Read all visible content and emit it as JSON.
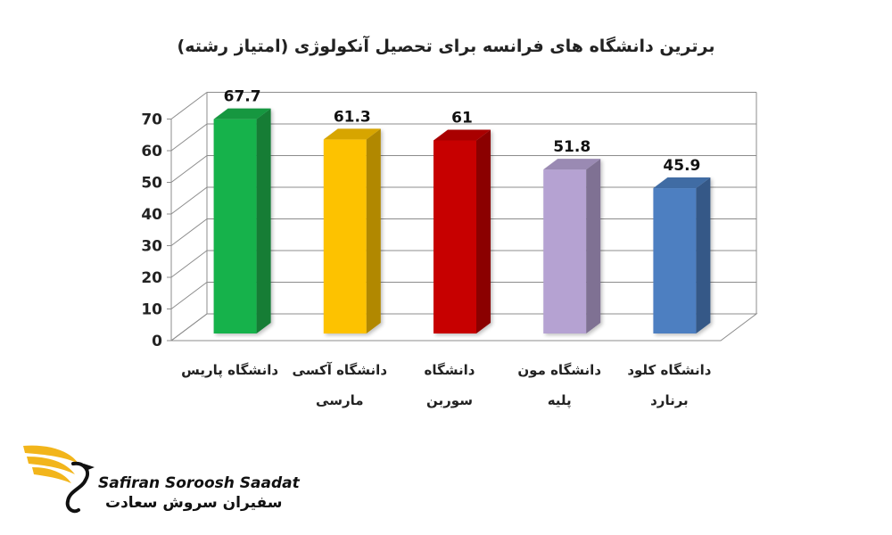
{
  "chart_data": {
    "type": "bar",
    "title": "برترین دانشگاه های فرانسه برای تحصیل آنکولوژی (امتیاز رشته)",
    "categories": [
      [
        "دانشگاه پاریس"
      ],
      [
        "دانشگاه آکسی",
        "مارسی"
      ],
      [
        "دانشگاه",
        "سوربن"
      ],
      [
        "دانشگاه مون",
        "پلیه"
      ],
      [
        "دانشگاه کلود",
        "برنارد"
      ]
    ],
    "values": [
      67.7,
      61.3,
      61,
      51.8,
      45.9
    ],
    "value_labels": [
      "67.7",
      "61.3",
      "61",
      "51.8",
      "45.9"
    ],
    "colors": [
      "#19b24b",
      "#fdc200",
      "#c70000",
      "#b5a2d2",
      "#4d7fc1"
    ],
    "ylim": [
      0,
      70
    ],
    "yticks": [
      "0",
      "10",
      "20",
      "30",
      "40",
      "50",
      "60",
      "70"
    ],
    "grid": true,
    "style": "3d"
  },
  "logo": {
    "name_en": "Safiran Soroosh Saadat",
    "name_fa": "سفیران سروش سعادت",
    "accent": "#f2b51b"
  }
}
